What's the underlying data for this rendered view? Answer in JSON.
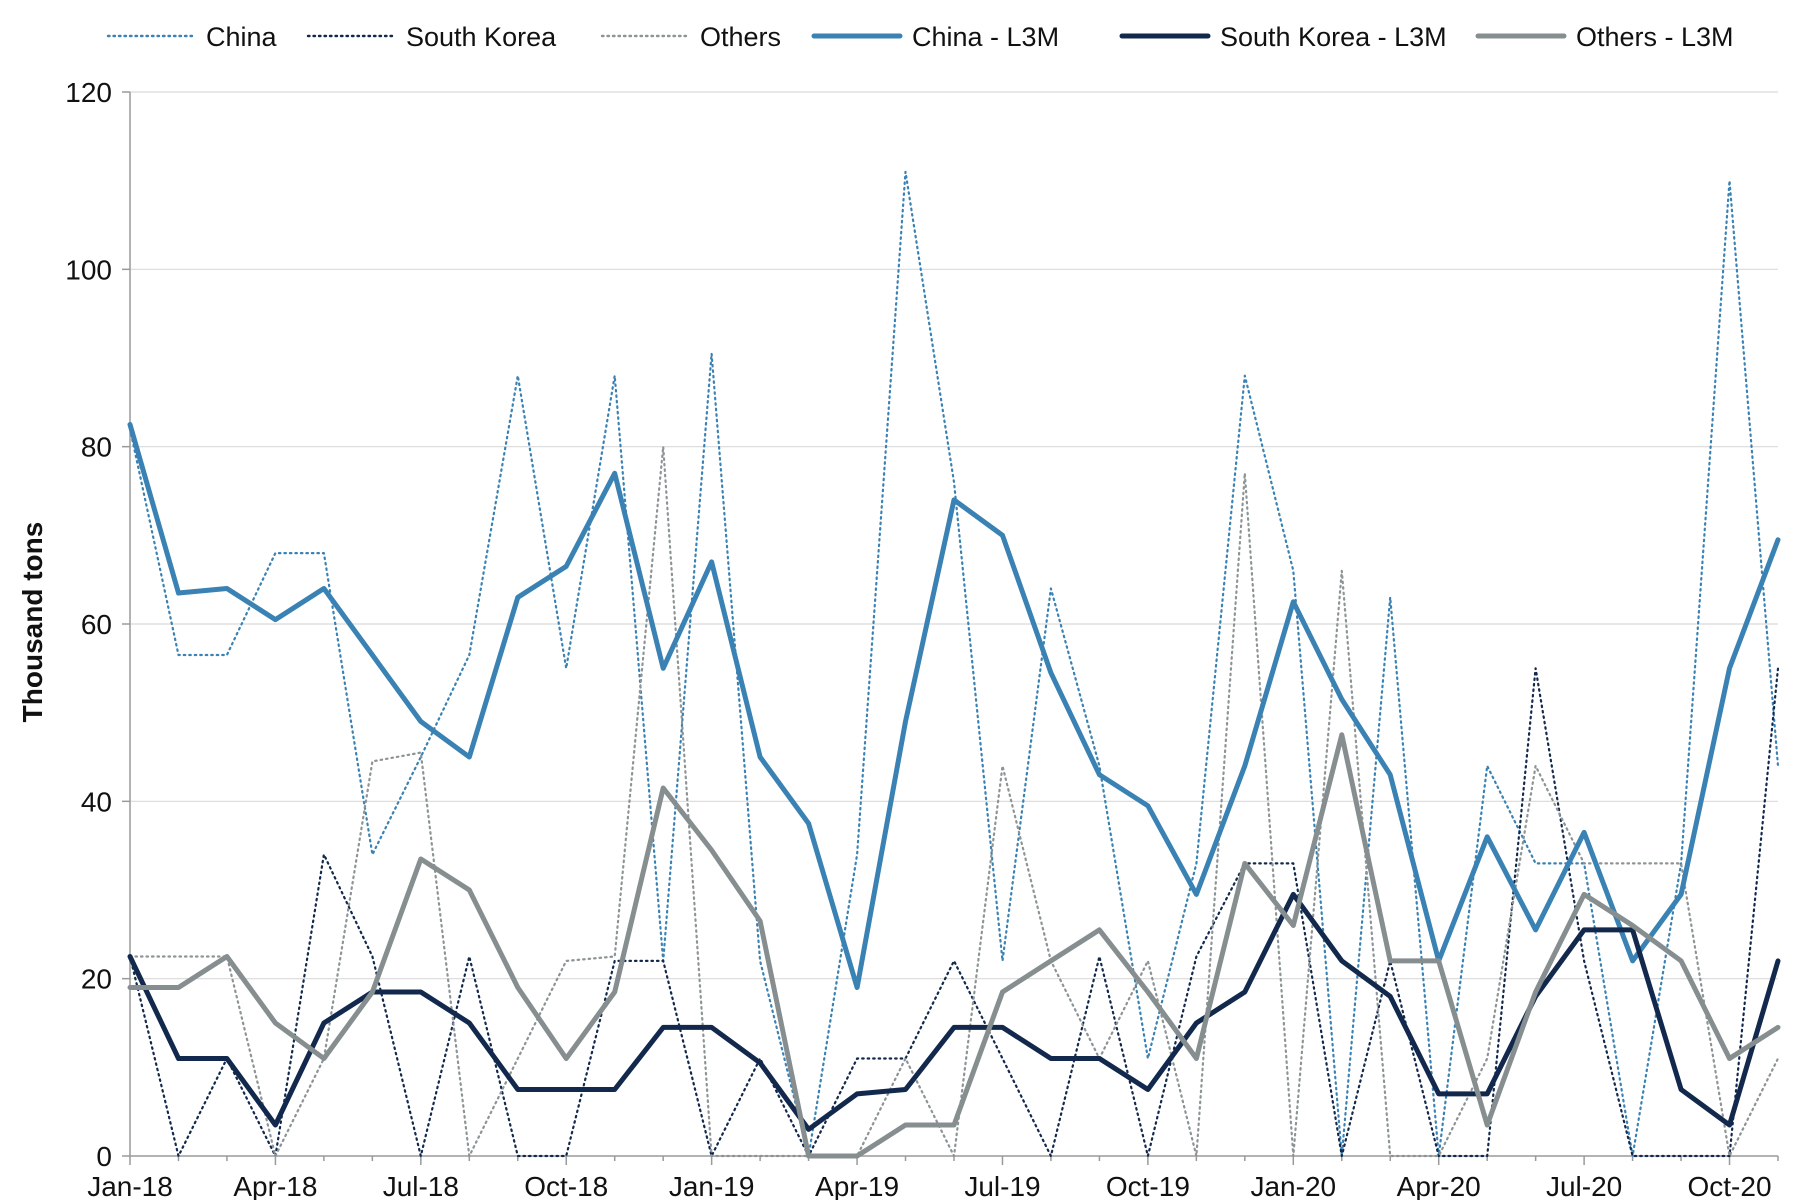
{
  "chart_data": {
    "type": "line",
    "title": "",
    "xlabel": "",
    "ylabel": "Thousand tons",
    "ylim": [
      0,
      120
    ],
    "yticks": [
      "0",
      "20",
      "40",
      "60",
      "80",
      "100",
      "120"
    ],
    "grid": "horizontal",
    "legend_position": "top",
    "x": [
      "Jan-18",
      "Feb-18",
      "Mar-18",
      "Apr-18",
      "May-18",
      "Jun-18",
      "Jul-18",
      "Aug-18",
      "Sep-18",
      "Oct-18",
      "Nov-18",
      "Dec-18",
      "Jan-19",
      "Feb-19",
      "Mar-19",
      "Apr-19",
      "May-19",
      "Jun-19",
      "Jul-19",
      "Aug-19",
      "Sep-19",
      "Oct-19",
      "Nov-19",
      "Dec-19",
      "Jan-20",
      "Feb-20",
      "Mar-20",
      "Apr-20",
      "May-20",
      "Jun-20",
      "Jul-20",
      "Aug-20",
      "Sep-20",
      "Oct-20",
      "Nov-20"
    ],
    "xtick_labels": [
      "Jan-18",
      "Apr-18",
      "Jul-18",
      "Oct-18",
      "Jan-19",
      "Apr-19",
      "Jul-19",
      "Oct-19",
      "Jan-20",
      "Apr-20",
      "Jul-20",
      "Oct-20"
    ],
    "series": [
      {
        "name": "China",
        "style": "dotted",
        "color": "#3a82b3",
        "values": [
          82,
          56.5,
          56.5,
          68,
          68,
          34,
          45,
          56.5,
          88,
          55,
          88,
          22,
          90.5,
          22,
          0,
          34,
          111,
          76,
          22,
          64,
          44,
          11,
          33,
          88,
          66,
          0,
          63,
          0,
          44,
          33,
          33,
          0,
          33,
          110,
          44
        ]
      },
      {
        "name": "South Korea",
        "style": "dotted",
        "color": "#12294d",
        "values": [
          22.5,
          0,
          11,
          0,
          34,
          22.5,
          0,
          22.5,
          0,
          0,
          22,
          22,
          0,
          11,
          0,
          11,
          11,
          22,
          11,
          0,
          22.5,
          0,
          22.5,
          33,
          33,
          0,
          22,
          0,
          0,
          55,
          22,
          0,
          0,
          0,
          55
        ]
      },
      {
        "name": "Others",
        "style": "dotted",
        "color": "#8c9496",
        "values": [
          22.5,
          22.5,
          22.5,
          0,
          11,
          44.5,
          45.5,
          0,
          11,
          22,
          22.5,
          80,
          0,
          0,
          0,
          0,
          11,
          0,
          44,
          22,
          11,
          22,
          0,
          77,
          0,
          66,
          0,
          0,
          11,
          44,
          33,
          33,
          33,
          0,
          11
        ]
      },
      {
        "name": "China - L3M",
        "style": "solid",
        "color": "#3a82b3",
        "values": [
          82.5,
          63.5,
          64,
          60.5,
          64,
          56.5,
          49,
          45,
          63,
          66.5,
          77,
          55,
          67,
          45,
          37.5,
          19,
          49,
          74,
          70,
          54.5,
          43,
          39.5,
          29.5,
          44,
          62.5,
          51.5,
          43,
          22,
          36,
          25.5,
          36.5,
          22,
          29.5,
          55,
          69.5
        ]
      },
      {
        "name": "South Korea - L3M",
        "style": "solid",
        "color": "#12294d",
        "values": [
          22.5,
          11,
          11,
          3.5,
          15,
          18.5,
          18.5,
          15,
          7.5,
          7.5,
          7.5,
          14.5,
          14.5,
          10.5,
          3,
          7,
          7.5,
          14.5,
          14.5,
          11,
          11,
          7.5,
          15,
          18.5,
          29.5,
          22,
          18,
          7,
          7,
          18,
          25.5,
          25.5,
          7.5,
          3.5,
          22
        ]
      },
      {
        "name": "Others - L3M",
        "style": "solid",
        "color": "#868e90",
        "values": [
          19,
          19,
          22.5,
          15,
          11,
          18.5,
          33.5,
          30,
          19,
          11,
          18.5,
          41.5,
          34.5,
          26.5,
          0,
          0,
          3.5,
          3.5,
          18.5,
          22,
          25.5,
          18.5,
          11,
          33,
          26,
          47.5,
          22,
          22,
          3.5,
          18.5,
          29.5,
          26,
          22,
          11,
          14.5
        ]
      }
    ]
  }
}
